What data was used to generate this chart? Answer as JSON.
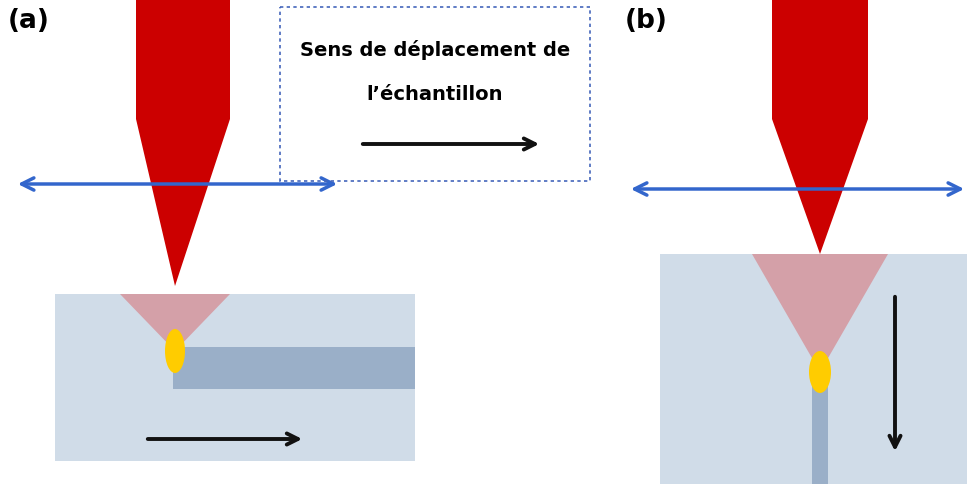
{
  "bg_color": "#ffffff",
  "label_a": "(a)",
  "label_b": "(b)",
  "box_text_line1": "Sens de déplacement de",
  "box_text_line2": "l’échantillon",
  "laser_color": "#cc0000",
  "laser_focus_color": "#d4a0a8",
  "sample_color_a": "#d0dce8",
  "sample_stripe_color": "#9aafc8",
  "sample_color_b": "#d0dce8",
  "focal_color": "#ffcc00",
  "blue_arrow_color": "#3366cc",
  "black_arrow_color": "#111111",
  "box_border_color": "#4466bb",
  "font_size_label": 19,
  "font_size_box": 14
}
